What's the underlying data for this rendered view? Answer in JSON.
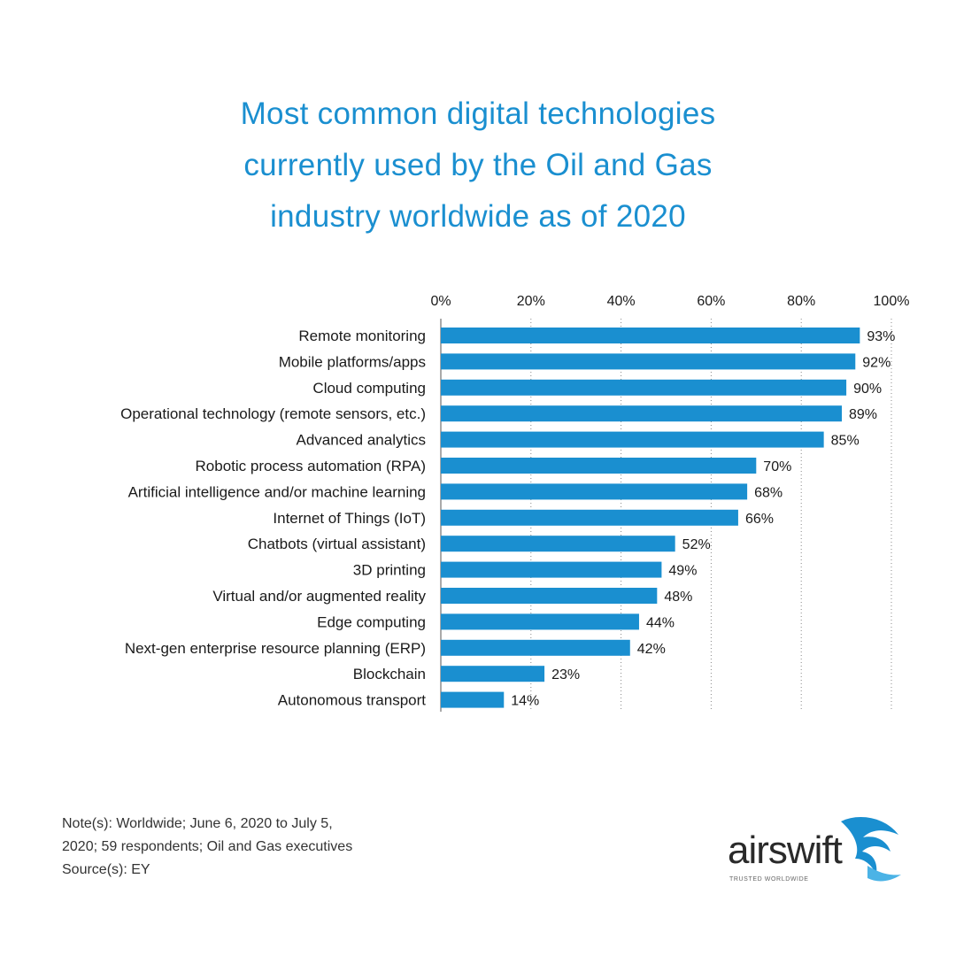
{
  "title": "Most common digital technologies currently used by the Oil and Gas industry worldwide as of 2020",
  "title_lines": [
    "Most common digital technologies",
    "currently used by the Oil and Gas",
    "industry worldwide as of 2020"
  ],
  "chart_data": {
    "type": "bar",
    "orientation": "horizontal",
    "categories": [
      "Remote monitoring",
      "Mobile platforms/apps",
      "Cloud computing",
      "Operational technology (remote sensors, etc.)",
      "Advanced analytics",
      "Robotic process automation (RPA)",
      "Artificial intelligence and/or machine learning",
      "Internet of Things (IoT)",
      "Chatbots (virtual assistant)",
      "3D printing",
      "Virtual and/or augmented reality",
      "Edge computing",
      "Next-gen enterprise resource planning (ERP)",
      "Blockchain",
      "Autonomous transport"
    ],
    "values": [
      93,
      92,
      90,
      89,
      85,
      70,
      68,
      66,
      52,
      49,
      48,
      44,
      42,
      23,
      14
    ],
    "value_labels": [
      "93%",
      "92%",
      "90%",
      "89%",
      "85%",
      "70%",
      "68%",
      "66%",
      "52%",
      "49%",
      "48%",
      "44%",
      "42%",
      "23%",
      "14%"
    ],
    "xlim": [
      0,
      100
    ],
    "xticks": [
      0,
      20,
      40,
      60,
      80,
      100
    ],
    "xtick_labels": [
      "0%",
      "20%",
      "40%",
      "60%",
      "80%",
      "100%"
    ],
    "axis_position": "top",
    "grid": "dotted vertical",
    "legend": "none",
    "bar_color": "#1a8fd0"
  },
  "note": {
    "lines": [
      "Note(s): Worldwide; June 6, 2020 to July 5,",
      "2020; 59 respondents; Oil and Gas executives",
      "Source(s): EY"
    ]
  },
  "logo": {
    "wordmark": "airswift",
    "tagline": "TRUSTED WORLDWIDE",
    "icon": "swift-bird-icon",
    "color": "#1a8fd0"
  }
}
